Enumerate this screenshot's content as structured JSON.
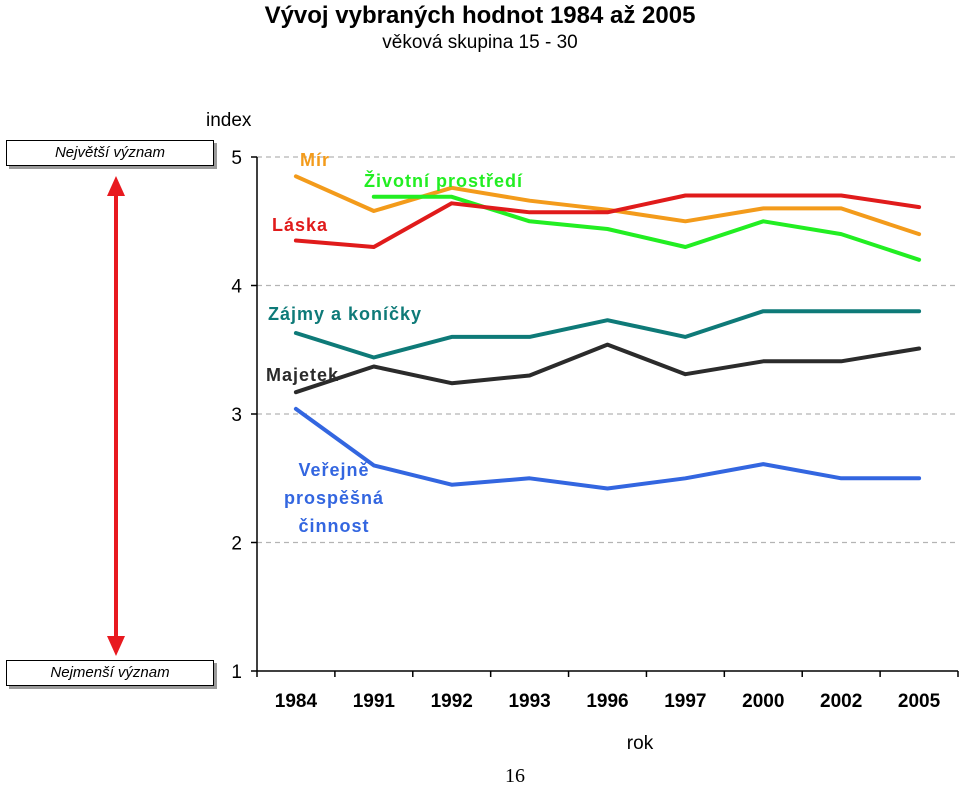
{
  "title": "Vývoj vybraných hodnot 1984 až 2005",
  "subtitle": "věková skupina 15 - 30",
  "scale": {
    "top_label": "Největší význam",
    "bottom_label": "Nejmenší význam",
    "arrow_color": "#e8191f"
  },
  "page_number": "16",
  "chart_data": {
    "type": "line",
    "title": "Vývoj vybraných hodnot 1984 až 2005",
    "subtitle": "věková skupina 15 - 30",
    "xlabel": "rok",
    "ylabel": "index",
    "categories": [
      "1984",
      "1991",
      "1992",
      "1993",
      "1996",
      "1997",
      "2000",
      "2002",
      "2005"
    ],
    "ylim": [
      1,
      5
    ],
    "yticks": [
      1,
      2,
      3,
      4,
      5
    ],
    "grid": "horizontal dashed",
    "series": [
      {
        "name": "Mír",
        "color": "#f39b1b",
        "values": [
          4.85,
          4.58,
          4.76,
          4.66,
          4.59,
          4.5,
          4.6,
          4.6,
          4.4
        ]
      },
      {
        "name": "Životní prostředí",
        "color": "#22ee22",
        "values": [
          null,
          4.69,
          4.69,
          4.5,
          4.44,
          4.3,
          4.5,
          4.4,
          4.2
        ]
      },
      {
        "name": "Láska",
        "color": "#e01b1b",
        "values": [
          4.35,
          4.3,
          4.64,
          4.57,
          4.57,
          4.7,
          4.7,
          4.7,
          4.61
        ]
      },
      {
        "name": "Zájmy a koníčky",
        "color": "#0e7a78",
        "values": [
          3.63,
          3.44,
          3.6,
          3.6,
          3.73,
          3.6,
          3.8,
          3.8,
          3.8
        ]
      },
      {
        "name": "Majetek",
        "color": "#2b2b2b",
        "values": [
          3.17,
          3.37,
          3.24,
          3.3,
          3.54,
          3.31,
          3.41,
          3.41,
          3.51
        ]
      },
      {
        "name": "Veřejně prospěšná činnost",
        "color": "#3366e0",
        "values": [
          3.04,
          2.6,
          2.45,
          2.5,
          2.42,
          2.5,
          2.61,
          2.5,
          2.5
        ]
      }
    ]
  }
}
